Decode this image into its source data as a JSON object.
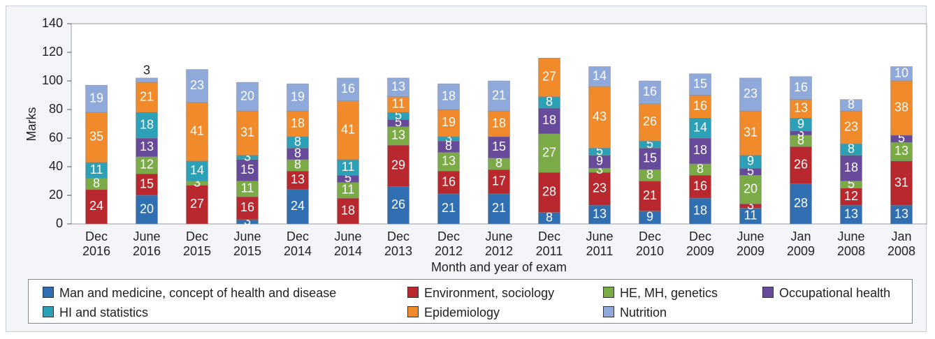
{
  "chart_data": {
    "type": "stacked_bar",
    "x_label": "Month and year of exam",
    "y_label": "Marks",
    "categories": [
      "Dec 2016",
      "June 2016",
      "Dec 2015",
      "June 2015",
      "Dec 2014",
      "June 2014",
      "Dec 2013",
      "Dec 2012",
      "June 2012",
      "Dec 2011",
      "June 2011",
      "Dec 2010",
      "Dec 2009",
      "June 2009",
      "Jan 2009",
      "June 2008",
      "Jan 2008"
    ],
    "series": [
      {
        "name": "Man and medicine, concept of health and disease",
        "color": "#2f6fb2",
        "values": [
          0,
          20,
          0,
          3,
          24,
          0,
          26,
          21,
          21,
          8,
          13,
          9,
          18,
          11,
          28,
          13,
          13
        ]
      },
      {
        "name": "Environment, sociology",
        "color": "#b8282e",
        "values": [
          24,
          15,
          27,
          16,
          13,
          18,
          29,
          16,
          17,
          28,
          23,
          21,
          16,
          3,
          26,
          12,
          31
        ]
      },
      {
        "name": "HE, MH, genetics",
        "color": "#7bab46",
        "values": [
          8,
          12,
          3,
          11,
          8,
          11,
          13,
          13,
          8,
          27,
          3,
          8,
          8,
          20,
          8,
          5,
          13
        ]
      },
      {
        "name": "Occupational health",
        "color": "#674a9a",
        "values": [
          0,
          13,
          0,
          15,
          8,
          5,
          5,
          8,
          15,
          18,
          9,
          15,
          18,
          5,
          3,
          18,
          5
        ]
      },
      {
        "name": "HI and statistics",
        "color": "#2ba0b6",
        "values": [
          11,
          18,
          14,
          3,
          8,
          11,
          5,
          3,
          0,
          8,
          5,
          5,
          14,
          9,
          9,
          8,
          0
        ]
      },
      {
        "name": "Epidemiology",
        "color": "#f08a2b",
        "values": [
          35,
          21,
          41,
          31,
          18,
          41,
          11,
          19,
          18,
          27,
          43,
          26,
          16,
          31,
          13,
          23,
          38
        ]
      },
      {
        "name": "Nutrition",
        "color": "#8ea9da",
        "values": [
          19,
          3,
          23,
          20,
          19,
          16,
          13,
          18,
          21,
          0,
          14,
          16,
          15,
          23,
          16,
          8,
          10
        ]
      }
    ],
    "ylim": [
      0,
      140
    ],
    "yticks": [
      0,
      20,
      40,
      60,
      80,
      100,
      120,
      140
    ]
  }
}
